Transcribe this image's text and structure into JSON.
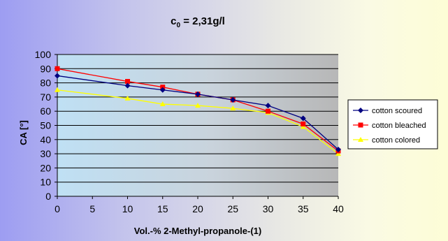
{
  "chart_data": {
    "type": "line",
    "title_main": "c",
    "title_sub": "0",
    "title_rest": " = 2,31g/l",
    "xlabel": "Vol.-% 2-Methyl-propanole-(1)",
    "ylabel": "CA [°]",
    "x": [
      0,
      10,
      15,
      20,
      25,
      30,
      35,
      40
    ],
    "xticks": [
      0,
      5,
      10,
      15,
      20,
      25,
      30,
      35,
      40
    ],
    "xticklabels": [
      "0",
      "5",
      "10",
      "15",
      "20",
      "25",
      "30",
      "35",
      "40"
    ],
    "yticks": [
      0,
      10,
      20,
      30,
      40,
      50,
      60,
      70,
      80,
      90,
      100
    ],
    "yticklabels": [
      "0",
      "10",
      "20",
      "30",
      "40",
      "50",
      "60",
      "70",
      "80",
      "90",
      "100"
    ],
    "xlim": [
      0,
      40
    ],
    "ylim": [
      0,
      100
    ],
    "grid": "horizontal",
    "legend_position": "right",
    "series": [
      {
        "name": "cotton scoured",
        "color": "#000080",
        "marker": "diamond",
        "values": [
          85,
          78,
          75,
          72,
          68,
          64,
          55,
          33
        ]
      },
      {
        "name": "cotton bleached",
        "color": "#ff0000",
        "marker": "square",
        "values": [
          90,
          81,
          77,
          72,
          68,
          60,
          51,
          32
        ]
      },
      {
        "name": "cotton colored",
        "color": "#ffff00",
        "marker": "triangle",
        "values": [
          75,
          69,
          65,
          64,
          62,
          59,
          49,
          30
        ]
      }
    ]
  }
}
